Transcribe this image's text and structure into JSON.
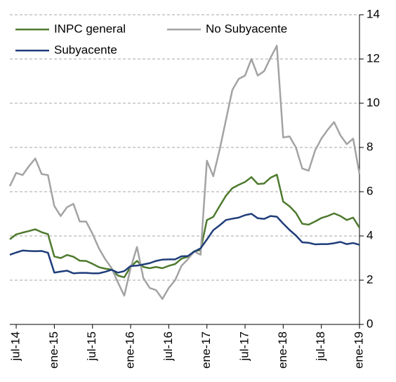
{
  "chart_data": {
    "type": "line",
    "categories": [
      null,
      "jul-14",
      null,
      null,
      null,
      null,
      null,
      "ene-15",
      null,
      null,
      null,
      null,
      null,
      "jul-15",
      null,
      null,
      null,
      null,
      null,
      "ene-16",
      null,
      null,
      null,
      null,
      null,
      "jul-16",
      null,
      null,
      null,
      null,
      null,
      "ene-17",
      null,
      null,
      null,
      null,
      null,
      "jul-17",
      null,
      null,
      null,
      null,
      null,
      "ene-18",
      null,
      null,
      null,
      null,
      null,
      "jul-18",
      null,
      null,
      null,
      null,
      null,
      "ene-19"
    ],
    "series": [
      {
        "name": "INPC general",
        "color": "#4e7a2e",
        "values": [
          3.85,
          4.07,
          4.15,
          4.22,
          4.3,
          4.17,
          4.08,
          3.07,
          3.0,
          3.14,
          3.06,
          2.88,
          2.87,
          2.74,
          2.59,
          2.52,
          2.48,
          2.21,
          2.13,
          2.61,
          2.87,
          2.6,
          2.54,
          2.6,
          2.54,
          2.65,
          2.73,
          2.97,
          3.06,
          3.31,
          3.36,
          4.72,
          4.86,
          5.35,
          5.82,
          6.16,
          6.31,
          6.44,
          6.66,
          6.35,
          6.37,
          6.63,
          6.77,
          5.55,
          5.34,
          5.04,
          4.55,
          4.51,
          4.65,
          4.81,
          4.9,
          5.02,
          4.9,
          4.72,
          4.83,
          4.37
        ]
      },
      {
        "name": "No Subyacente",
        "color": "#a3a3a3",
        "values": [
          6.25,
          6.85,
          6.75,
          7.15,
          7.5,
          6.8,
          6.75,
          5.35,
          4.9,
          5.3,
          5.45,
          4.65,
          4.65,
          4.1,
          3.45,
          2.95,
          2.55,
          1.9,
          1.3,
          2.55,
          3.5,
          2.1,
          1.65,
          1.55,
          1.15,
          1.65,
          2.0,
          2.65,
          2.95,
          3.3,
          3.15,
          7.4,
          6.7,
          7.9,
          9.25,
          10.6,
          11.1,
          11.25,
          12.0,
          11.25,
          11.45,
          12.05,
          12.6,
          8.45,
          8.5,
          8.0,
          7.05,
          6.95,
          7.85,
          8.4,
          8.8,
          9.15,
          8.55,
          8.15,
          8.4,
          6.8
        ]
      },
      {
        "name": "Subyacente",
        "color": "#1f3d7a",
        "values": [
          3.15,
          3.25,
          3.34,
          3.32,
          3.31,
          3.32,
          3.24,
          2.34,
          2.39,
          2.43,
          2.31,
          2.33,
          2.33,
          2.31,
          2.31,
          2.38,
          2.47,
          2.34,
          2.41,
          2.64,
          2.66,
          2.71,
          2.77,
          2.87,
          2.93,
          2.94,
          2.94,
          3.08,
          3.09,
          3.29,
          3.44,
          3.84,
          4.26,
          4.48,
          4.72,
          4.78,
          4.83,
          4.94,
          5.0,
          4.8,
          4.77,
          4.9,
          4.87,
          4.56,
          4.27,
          4.02,
          3.71,
          3.69,
          3.62,
          3.63,
          3.63,
          3.67,
          3.73,
          3.63,
          3.68,
          3.6
        ]
      }
    ],
    "ylim": [
      0,
      14
    ],
    "yticks": [
      0,
      2,
      4,
      6,
      8,
      10,
      12,
      14
    ],
    "grid": true,
    "legend": "top-left"
  }
}
